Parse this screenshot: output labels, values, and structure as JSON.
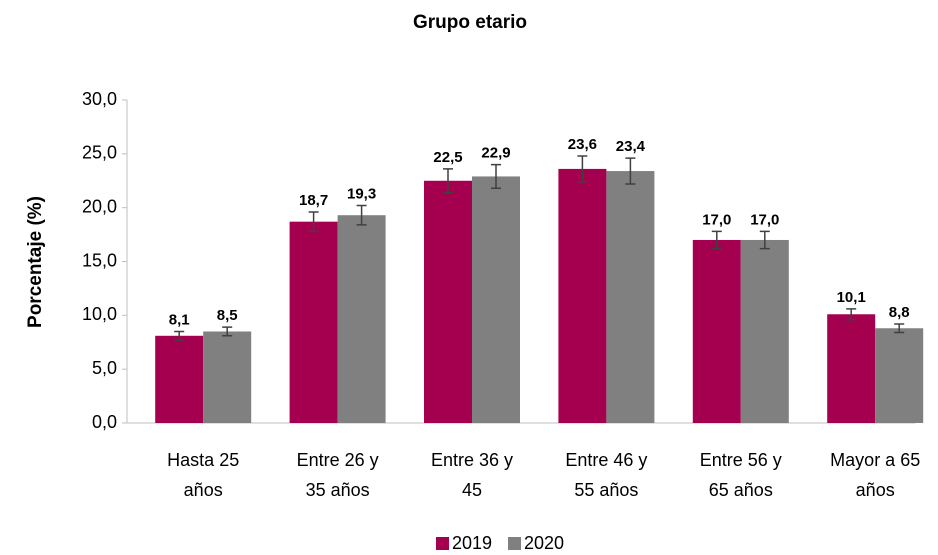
{
  "chart_data": {
    "type": "bar",
    "title": "Grupo etario",
    "ylabel": "Porcentaje (%)",
    "categories": [
      "Hasta 25 años",
      "Entre 26 y 35 años",
      "Entre 36 y 45",
      "Entre 46 y 55 años",
      "Entre 56 y 65 años",
      "Mayor a 65 años"
    ],
    "series": [
      {
        "name": "2019",
        "color": "#a50050",
        "values": [
          8.1,
          18.7,
          22.5,
          23.6,
          17.0,
          10.1
        ],
        "value_labels": [
          "8,1",
          "18,7",
          "22,5",
          "23,6",
          "17,0",
          "10,1"
        ],
        "errors": [
          0.4,
          0.9,
          1.1,
          1.2,
          0.8,
          0.5
        ]
      },
      {
        "name": "2020",
        "color": "#808080",
        "values": [
          8.5,
          19.3,
          22.9,
          23.4,
          17.0,
          8.8
        ],
        "value_labels": [
          "8,5",
          "19,3",
          "22,9",
          "23,4",
          "17,0",
          "8,8"
        ],
        "errors": [
          0.4,
          0.9,
          1.1,
          1.2,
          0.8,
          0.4
        ]
      }
    ],
    "ylim": [
      0,
      30
    ],
    "yticks": [
      {
        "value": 0,
        "label": "0,0"
      },
      {
        "value": 5,
        "label": "5,0"
      },
      {
        "value": 10,
        "label": "10,0"
      },
      {
        "value": 15,
        "label": "15,0"
      },
      {
        "value": 20,
        "label": "20,0"
      },
      {
        "value": 25,
        "label": "25,0"
      },
      {
        "value": 30,
        "label": "30,0"
      }
    ],
    "legend": "bottom"
  }
}
